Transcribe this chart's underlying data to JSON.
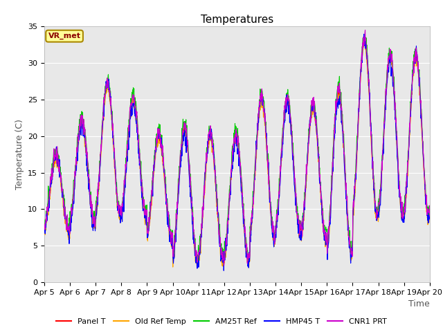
{
  "title": "Temperatures",
  "xlabel": "Time",
  "ylabel": "Temperature (C)",
  "ylim": [
    0,
    35
  ],
  "background_color": "#e8e8e8",
  "figure_bg": "#ffffff",
  "grid_color": "#ffffff",
  "series": {
    "Panel T": {
      "color": "#ff0000"
    },
    "Old Ref Temp": {
      "color": "#ffa500"
    },
    "AM25T Ref": {
      "color": "#00cc00"
    },
    "HMP45 T": {
      "color": "#0000ff"
    },
    "CNR1 PRT": {
      "color": "#cc00cc"
    }
  },
  "annotation_text": "VR_met",
  "annotation_box_color": "#ffff99",
  "annotation_border_color": "#8b0000",
  "x_tick_labels": [
    "Apr 5",
    "Apr 6",
    "Apr 7",
    "Apr 8",
    "Apr 9",
    "Apr 10",
    "Apr 11",
    "Apr 12",
    "Apr 13",
    "Apr 14",
    "Apr 15",
    "Apr 16",
    "Apr 17",
    "Apr 18",
    "Apr 19",
    "Apr 20"
  ],
  "y_ticks": [
    0,
    5,
    10,
    15,
    20,
    25,
    30,
    35
  ],
  "title_fontsize": 11,
  "axis_label_fontsize": 9,
  "tick_fontsize": 8,
  "legend_fontsize": 8,
  "n_days": 15,
  "day_amplitudes": [
    10,
    14,
    18,
    16,
    14,
    18,
    17,
    17,
    19,
    18,
    18,
    22,
    24,
    22,
    22
  ],
  "day_mins": [
    7,
    8,
    9,
    9,
    6,
    3,
    3,
    3,
    6,
    7,
    6,
    4,
    9,
    9,
    9
  ]
}
